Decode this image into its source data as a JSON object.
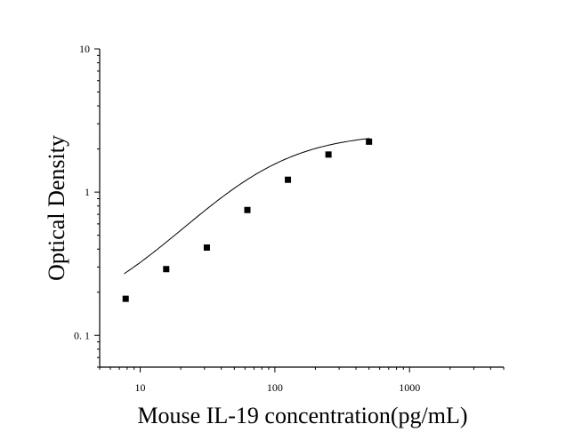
{
  "chart_data": {
    "type": "scatter",
    "xlabel": "Mouse IL-19 concentration(pg/mL)",
    "ylabel": "Optical Density",
    "xscale": "log",
    "yscale": "log",
    "xlim": [
      5,
      5000
    ],
    "ylim": [
      0.06,
      10
    ],
    "xticks": [
      {
        "value": 10,
        "label": "10"
      },
      {
        "value": 100,
        "label": "100"
      },
      {
        "value": 1000,
        "label": "1000"
      }
    ],
    "yticks": [
      {
        "value": 0.1,
        "label": "0. 1"
      },
      {
        "value": 1,
        "label": "1"
      },
      {
        "value": 10,
        "label": "10"
      }
    ],
    "grid": false,
    "legend": "none",
    "points": [
      {
        "x": 7.8,
        "y": 0.18
      },
      {
        "x": 15.6,
        "y": 0.29
      },
      {
        "x": 31.25,
        "y": 0.41
      },
      {
        "x": 62.5,
        "y": 0.75
      },
      {
        "x": 125,
        "y": 1.22
      },
      {
        "x": 250,
        "y": 1.83
      },
      {
        "x": 500,
        "y": 2.25
      }
    ],
    "fit_curve": {
      "model": "4PL",
      "params": {
        "A": 0.12,
        "D": 2.6,
        "C": 75,
        "B": 1.2
      },
      "x_range": [
        7.6,
        505
      ]
    },
    "colors": {
      "marks": "#000000",
      "curve": "#000000",
      "axis": "#000000"
    }
  }
}
